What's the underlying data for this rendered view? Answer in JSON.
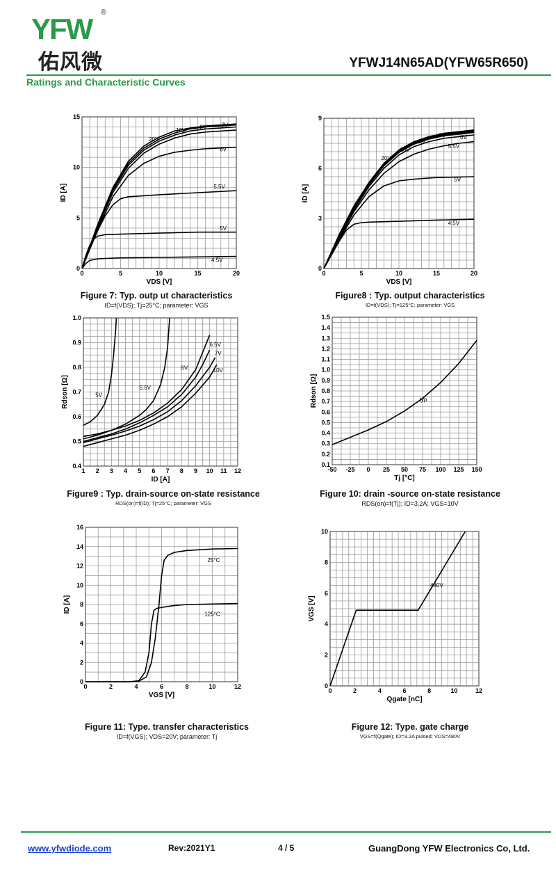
{
  "header": {
    "logo_text": "YFW",
    "logo_reg": "®",
    "logo_cn": "佑风微",
    "part_number": "YFWJ14N65AD(YFW65R650)",
    "section_title": "Ratings and Characteristic Curves"
  },
  "footer": {
    "url": "www.yfwdiode.com",
    "rev": "Rev:2021Y1",
    "page": "4 / 5",
    "company": "GuangDong YFW Electronics Co, Ltd."
  },
  "colors": {
    "accent": "#2a9a4a",
    "logo_w": "#f08a00",
    "link": "#1a3fd0",
    "grid": "#9a9a9a",
    "curve": "#000000"
  },
  "figures": [
    {
      "caption": "Figure 7: Typ. outp  ut characteristics",
      "subcaption": "ID=f(VDS); Tj=25°C; parameter: VGS"
    },
    {
      "caption": "Figure8 : Typ. output characteristics",
      "subcaption": "ID=f(VDS); Tj=125°C; parameter: VGS"
    },
    {
      "caption": "Figure9 : Typ. drain-source on-state resistance",
      "subcaption": "RDS(on)=f(ID); Tj=25°C; parameter: VGS"
    },
    {
      "caption": "Figure 10: drain  -source on-state resistance",
      "subcaption": "RDS(on)=f(Tj); ID=3.2A; VGS=10V"
    },
    {
      "caption": "Figure 11: Type. transfer characteristics",
      "subcaption": "ID=f(VGS); VDS=20V; parameter: Tj"
    },
    {
      "caption": "Figure 12: Type. gate charge",
      "subcaption": "VGS=f(Qgate); ID=3.2A pulsed; VDS=480V"
    }
  ],
  "chart_data": [
    {
      "type": "line",
      "id": "fig7",
      "xlabel": "VDS [V]",
      "ylabel": "ID [A]",
      "xlim": [
        0,
        20
      ],
      "ylim": [
        0,
        15
      ],
      "xticks": [
        0,
        5,
        10,
        15,
        20
      ],
      "yticks": [
        0,
        5,
        10,
        15
      ],
      "xgrid": 1,
      "ygrid": 1,
      "grid": true,
      "series": [
        {
          "name": "4.5V",
          "x": [
            0,
            0.5,
            1,
            2,
            3,
            5,
            10,
            15,
            20
          ],
          "y": [
            0,
            0.5,
            0.8,
            0.95,
            1.0,
            1.05,
            1.1,
            1.15,
            1.2
          ]
        },
        {
          "name": "5V",
          "x": [
            0,
            0.5,
            1,
            1.5,
            2,
            3,
            5,
            10,
            15,
            20
          ],
          "y": [
            0,
            1.3,
            2.3,
            2.9,
            3.2,
            3.35,
            3.4,
            3.5,
            3.6,
            3.6
          ]
        },
        {
          "name": "5.5V",
          "x": [
            0,
            1,
            2,
            3,
            4,
            5,
            6,
            8,
            10,
            15,
            20
          ],
          "y": [
            0,
            1.9,
            3.7,
            5.2,
            6.3,
            6.9,
            7.1,
            7.2,
            7.3,
            7.5,
            7.7
          ]
        },
        {
          "name": "6V",
          "x": [
            0,
            2,
            4,
            6,
            8,
            10,
            12,
            14,
            16,
            20
          ],
          "y": [
            0,
            3.8,
            7.1,
            9.2,
            10.4,
            11.1,
            11.5,
            11.7,
            11.85,
            12.0
          ]
        },
        {
          "name": "7V",
          "x": [
            0,
            2,
            4,
            6,
            8,
            10,
            12,
            14,
            16,
            20
          ],
          "y": [
            0,
            4.0,
            7.5,
            9.9,
            11.4,
            12.3,
            12.9,
            13.3,
            13.5,
            13.7
          ]
        },
        {
          "name": "8V",
          "x": [
            0,
            2,
            4,
            6,
            8,
            10,
            12,
            14,
            16,
            20
          ],
          "y": [
            0,
            4.1,
            7.7,
            10.2,
            11.7,
            12.6,
            13.2,
            13.6,
            13.8,
            14.0
          ]
        },
        {
          "name": "10V",
          "x": [
            0,
            2,
            4,
            6,
            8,
            10,
            12,
            14,
            16,
            20
          ],
          "y": [
            0,
            4.2,
            7.9,
            10.4,
            11.9,
            12.8,
            13.4,
            13.8,
            14.0,
            14.2
          ]
        },
        {
          "name": "20V",
          "x": [
            0,
            2,
            4,
            6,
            8,
            10,
            12,
            14,
            16,
            20
          ],
          "y": [
            0,
            4.3,
            8.0,
            10.6,
            12.1,
            13.0,
            13.6,
            13.9,
            14.1,
            14.3
          ]
        }
      ],
      "labels": [
        {
          "text": "20V",
          "x": 9.3,
          "y": 12.6
        },
        {
          "text": "10V",
          "x": 12.8,
          "y": 13.5
        },
        {
          "text": "8V",
          "x": 15.7,
          "y": 13.8
        },
        {
          "text": "7V",
          "x": 18.5,
          "y": 14.0
        },
        {
          "text": "6V",
          "x": 18.3,
          "y": 11.6
        },
        {
          "text": "5.5V",
          "x": 17.8,
          "y": 7.9
        },
        {
          "text": "5V",
          "x": 18.3,
          "y": 3.8
        },
        {
          "text": "4.5V",
          "x": 17.5,
          "y": 0.65
        }
      ]
    },
    {
      "type": "line",
      "id": "fig8",
      "xlabel": "VDS [V]",
      "ylabel": "ID [A]",
      "xlim": [
        0,
        20
      ],
      "ylim": [
        0,
        9
      ],
      "xticks": [
        0,
        5,
        10,
        15,
        20
      ],
      "yticks": [
        0,
        3,
        6,
        9
      ],
      "xgrid": 1,
      "ygrid": 0.5,
      "grid": true,
      "series": [
        {
          "name": "4.5V",
          "x": [
            0,
            1,
            2,
            3,
            4,
            5,
            6,
            10,
            15,
            20
          ],
          "y": [
            0,
            0.8,
            1.6,
            2.3,
            2.65,
            2.75,
            2.78,
            2.83,
            2.9,
            2.95
          ]
        },
        {
          "name": "5V",
          "x": [
            0,
            2,
            4,
            6,
            8,
            10,
            12,
            15,
            20
          ],
          "y": [
            0,
            1.7,
            3.2,
            4.3,
            4.95,
            5.25,
            5.35,
            5.45,
            5.5
          ]
        },
        {
          "name": "5.5V",
          "x": [
            0,
            2,
            4,
            6,
            8,
            10,
            12,
            14,
            16,
            18,
            20
          ],
          "y": [
            0,
            1.75,
            3.4,
            4.7,
            5.7,
            6.4,
            6.85,
            7.15,
            7.35,
            7.5,
            7.6
          ]
        },
        {
          "name": "6V",
          "x": [
            0,
            2,
            4,
            6,
            8,
            10,
            12,
            14,
            16,
            18,
            20
          ],
          "y": [
            0,
            1.8,
            3.5,
            4.9,
            6.0,
            6.8,
            7.3,
            7.6,
            7.8,
            7.9,
            8.0
          ]
        },
        {
          "name": "7V",
          "x": [
            0,
            2,
            4,
            6,
            8,
            10,
            12,
            14,
            16,
            18,
            20
          ],
          "y": [
            0,
            1.85,
            3.6,
            5.0,
            6.15,
            6.95,
            7.45,
            7.75,
            7.95,
            8.05,
            8.15
          ]
        },
        {
          "name": "8V",
          "x": [
            0,
            2,
            4,
            6,
            8,
            10,
            12,
            14,
            16,
            18,
            20
          ],
          "y": [
            0,
            1.9,
            3.65,
            5.05,
            6.2,
            7.0,
            7.5,
            7.8,
            8.0,
            8.1,
            8.2
          ]
        },
        {
          "name": "10V",
          "x": [
            0,
            2,
            4,
            6,
            8,
            10,
            12,
            14,
            16,
            18,
            20
          ],
          "y": [
            0,
            1.95,
            3.7,
            5.1,
            6.25,
            7.05,
            7.55,
            7.85,
            8.05,
            8.15,
            8.25
          ]
        },
        {
          "name": "20V",
          "x": [
            0,
            2,
            4,
            6,
            8,
            10,
            12,
            14,
            16,
            18,
            20
          ],
          "y": [
            0,
            2.0,
            3.75,
            5.15,
            6.3,
            7.1,
            7.6,
            7.9,
            8.1,
            8.2,
            8.3
          ]
        }
      ],
      "labels": [
        {
          "text": "20V",
          "x": 8.3,
          "y": 6.5
        },
        {
          "text": "10V",
          "x": 10.8,
          "y": 7.0
        },
        {
          "text": "8V",
          "x": 13.1,
          "y": 7.5
        },
        {
          "text": "7V",
          "x": 15.8,
          "y": 7.85
        },
        {
          "text": "6V",
          "x": 18.6,
          "y": 7.75
        },
        {
          "text": "5.5V",
          "x": 17.3,
          "y": 7.2
        },
        {
          "text": "5V",
          "x": 17.8,
          "y": 5.2
        },
        {
          "text": "4.5V",
          "x": 17.3,
          "y": 2.6
        }
      ]
    },
    {
      "type": "line",
      "id": "fig9",
      "xlabel": "ID [A]",
      "ylabel": "Rdson [Ω]",
      "xlim": [
        1,
        12
      ],
      "ylim": [
        0.4,
        1.0
      ],
      "xticks": [
        1,
        2,
        3,
        4,
        5,
        6,
        7,
        8,
        9,
        10,
        11,
        12
      ],
      "yticks": [
        0.4,
        0.5,
        0.6,
        0.7,
        0.8,
        0.9,
        1.0
      ],
      "ytick_format": "0.0",
      "xgrid": 0.5,
      "ygrid": 0.025,
      "grid": true,
      "series": [
        {
          "name": "5V",
          "x": [
            1,
            1.5,
            2,
            2.5,
            2.8,
            3.0,
            3.15,
            3.3,
            3.35
          ],
          "y": [
            0.565,
            0.58,
            0.605,
            0.65,
            0.7,
            0.77,
            0.85,
            0.95,
            1.0
          ]
        },
        {
          "name": "5.5V",
          "x": [
            1,
            2,
            3,
            4,
            5,
            5.5,
            6,
            6.5,
            6.8,
            7.0,
            7.15
          ],
          "y": [
            0.51,
            0.525,
            0.545,
            0.57,
            0.605,
            0.63,
            0.665,
            0.73,
            0.8,
            0.88,
            1.0
          ]
        },
        {
          "name": "6V",
          "x": [
            1,
            2,
            3,
            4,
            5,
            6,
            7,
            8,
            9,
            9.5,
            10
          ],
          "y": [
            0.5,
            0.515,
            0.53,
            0.55,
            0.575,
            0.605,
            0.64,
            0.69,
            0.76,
            0.81,
            0.87
          ]
        },
        {
          "name": "6.5V",
          "x": [
            1,
            2,
            3,
            4,
            5,
            6,
            7,
            8,
            9,
            10
          ],
          "y": [
            0.52,
            0.53,
            0.545,
            0.562,
            0.585,
            0.615,
            0.655,
            0.71,
            0.79,
            0.93
          ]
        },
        {
          "name": "7V",
          "x": [
            1,
            2,
            3,
            4,
            5,
            6,
            7,
            8,
            9,
            10,
            10.4
          ],
          "y": [
            0.495,
            0.51,
            0.525,
            0.542,
            0.562,
            0.588,
            0.62,
            0.665,
            0.725,
            0.8,
            0.84
          ]
        },
        {
          "name": "10V",
          "x": [
            1,
            2,
            3,
            4,
            5,
            6,
            7,
            8,
            9,
            10,
            10.5
          ],
          "y": [
            0.48,
            0.495,
            0.51,
            0.525,
            0.545,
            0.57,
            0.6,
            0.64,
            0.695,
            0.76,
            0.81
          ]
        }
      ],
      "labels": [
        {
          "text": "5V",
          "x": 2.1,
          "y": 0.68
        },
        {
          "text": "5.5V",
          "x": 5.4,
          "y": 0.71
        },
        {
          "text": "6V",
          "x": 8.2,
          "y": 0.79
        },
        {
          "text": "6.5V",
          "x": 10.4,
          "y": 0.885
        },
        {
          "text": "7V",
          "x": 10.6,
          "y": 0.85
        },
        {
          "text": "10V",
          "x": 10.6,
          "y": 0.78
        }
      ]
    },
    {
      "type": "line",
      "id": "fig10",
      "xlabel": "Tj [°C]",
      "ylabel": "Rdson [Ω]",
      "xlim": [
        -50,
        150
      ],
      "ylim": [
        0.1,
        1.5
      ],
      "xticks": [
        -50,
        -25,
        0,
        25,
        50,
        75,
        100,
        125,
        150
      ],
      "yticks": [
        0.1,
        0.2,
        0.3,
        0.4,
        0.5,
        0.6,
        0.7,
        0.8,
        0.9,
        1.0,
        1.1,
        1.2,
        1.3,
        1.4,
        1.5
      ],
      "ytick_format": "0.0",
      "xgrid": 12.5,
      "ygrid": 0.05,
      "grid": true,
      "series": [
        {
          "name": "typ",
          "x": [
            -50,
            -25,
            0,
            25,
            50,
            75,
            100,
            125,
            150
          ],
          "y": [
            0.29,
            0.36,
            0.43,
            0.51,
            0.61,
            0.73,
            0.88,
            1.06,
            1.28
          ]
        }
      ],
      "labels": [
        {
          "text": "typ",
          "x": 76,
          "y": 0.7
        }
      ]
    },
    {
      "type": "line",
      "id": "fig11",
      "xlabel": "VGS [V]",
      "ylabel": "ID [A]",
      "xlim": [
        0,
        12
      ],
      "ylim": [
        0,
        16
      ],
      "xticks": [
        0,
        2,
        4,
        6,
        8,
        10,
        12
      ],
      "yticks": [
        0,
        2,
        4,
        6,
        8,
        10,
        12,
        14,
        16
      ],
      "xgrid": 1,
      "ygrid": 1,
      "grid": true,
      "series": [
        {
          "name": "25°C",
          "x": [
            0,
            3.5,
            4.2,
            4.8,
            5.2,
            5.5,
            5.8,
            6.0,
            6.2,
            6.5,
            7,
            8,
            10,
            12
          ],
          "y": [
            0,
            0,
            0.05,
            0.5,
            2,
            4.5,
            8,
            11,
            12.6,
            13.1,
            13.4,
            13.6,
            13.75,
            13.8
          ]
        },
        {
          "name": "125°C",
          "x": [
            0,
            3.5,
            4.2,
            4.7,
            5.0,
            5.2,
            5.4,
            5.6,
            6.0,
            7,
            8,
            10,
            12
          ],
          "y": [
            0,
            0,
            0.1,
            1.0,
            3.0,
            6.0,
            7.4,
            7.6,
            7.7,
            7.9,
            8.0,
            8.05,
            8.1
          ]
        }
      ],
      "labels": [
        {
          "text": "25°C",
          "x": 10.1,
          "y": 12.4
        },
        {
          "text": "125°C",
          "x": 10.0,
          "y": 6.8
        }
      ]
    },
    {
      "type": "line",
      "id": "fig12",
      "xlabel": "Qgate [nC]",
      "ylabel": "VGS [V]",
      "xlim": [
        0,
        12
      ],
      "ylim": [
        0,
        10
      ],
      "xticks": [
        0,
        2,
        4,
        6,
        8,
        10,
        12
      ],
      "yticks": [
        0,
        2,
        4,
        6,
        8,
        10
      ],
      "xgrid": 0.5,
      "ygrid": 0.5,
      "grid": true,
      "series": [
        {
          "name": "480V",
          "x": [
            0,
            2.1,
            7.1,
            10.9
          ],
          "y": [
            0,
            4.9,
            4.9,
            10.0
          ]
        }
      ],
      "labels": [
        {
          "text": "480V",
          "x": 8.6,
          "y": 6.4
        }
      ]
    }
  ]
}
